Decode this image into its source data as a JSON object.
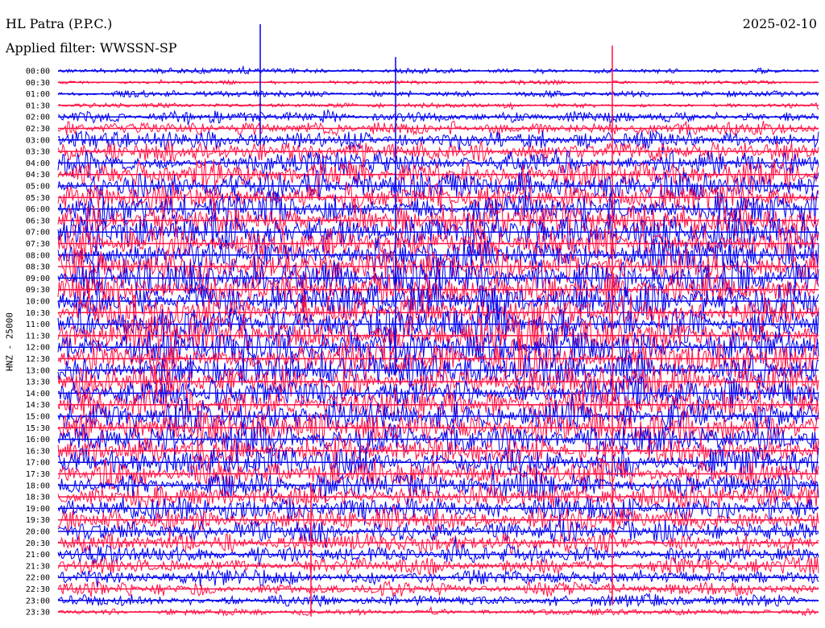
{
  "header": {
    "station": "HL Patra (P.P.C.)",
    "filter": "Applied filter: WWSSN-SP",
    "date": "2025-02-10"
  },
  "axis": {
    "channel_label": "HNZ - 25000"
  },
  "colors": {
    "trace_a": "#0000ee",
    "trace_b": "#ff1144"
  },
  "chart_data": {
    "type": "line",
    "title": "HL Patra (P.P.C.)",
    "subtitle": "Applied filter: WWSSN-SP",
    "ylabel": "HNZ - 25000",
    "tick_labels": [
      "00:00",
      "00:30",
      "01:00",
      "01:30",
      "02:00",
      "02:30",
      "03:00",
      "03:30",
      "04:00",
      "04:30",
      "05:00",
      "05:30",
      "06:00",
      "06:30",
      "07:00",
      "07:30",
      "08:00",
      "08:30",
      "09:00",
      "09:30",
      "10:00",
      "10:30",
      "11:00",
      "11:30",
      "12:00",
      "12:30",
      "13:00",
      "13:30",
      "14:00",
      "14:30",
      "15:00",
      "15:30",
      "16:00",
      "16:30",
      "17:00",
      "17:30",
      "18:00",
      "18:30",
      "19:00",
      "19:30",
      "20:00",
      "20:30",
      "21:00",
      "21:30",
      "22:00",
      "22:30",
      "23:00",
      "23:30"
    ],
    "trace_colors": [
      "blue",
      "red"
    ],
    "relative_amplitude": [
      0.25,
      0.2,
      0.3,
      0.25,
      0.35,
      0.4,
      0.5,
      0.6,
      0.7,
      0.8,
      0.85,
      0.95,
      1.0,
      1.0,
      1.0,
      1.0,
      1.0,
      1.0,
      1.0,
      1.0,
      1.0,
      1.0,
      1.0,
      1.0,
      1.0,
      1.0,
      1.0,
      1.0,
      0.95,
      0.95,
      0.9,
      0.9,
      0.9,
      0.85,
      0.85,
      0.85,
      0.8,
      0.75,
      0.7,
      0.7,
      0.65,
      0.6,
      0.55,
      0.5,
      0.45,
      0.4,
      0.35,
      0.3
    ]
  }
}
